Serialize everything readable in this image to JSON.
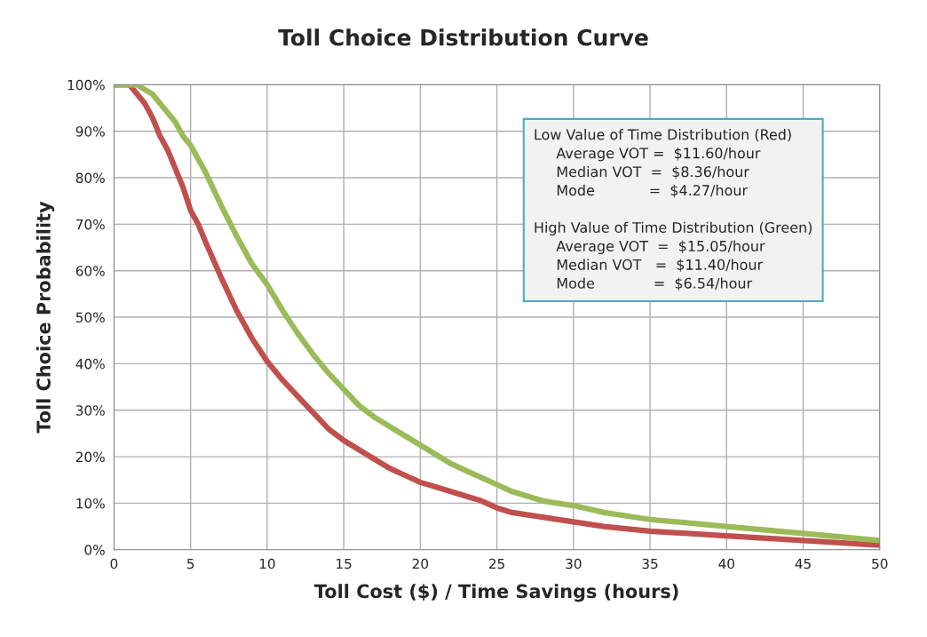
{
  "chart_data": {
    "type": "line",
    "title": "Toll Choice Distribution Curve",
    "xlabel": "Toll Cost ($) / Time Savings (hours)",
    "ylabel": "Toll Choice Probability",
    "xlim": [
      0,
      50
    ],
    "xticks": [
      0,
      5,
      10,
      15,
      20,
      25,
      30,
      35,
      40,
      45,
      50
    ],
    "ylim": [
      0,
      100
    ],
    "yticks": [
      {
        "value": 0,
        "label": "0%"
      },
      {
        "value": 10,
        "label": "10%"
      },
      {
        "value": 20,
        "label": "20%"
      },
      {
        "value": 30,
        "label": "30%"
      },
      {
        "value": 40,
        "label": "40%"
      },
      {
        "value": 50,
        "label": "50%"
      },
      {
        "value": 60,
        "label": "60%"
      },
      {
        "value": 70,
        "label": "70%"
      },
      {
        "value": 80,
        "label": "80%"
      },
      {
        "value": 90,
        "label": "90%"
      },
      {
        "value": 100,
        "label": "100%"
      }
    ],
    "grid": true,
    "marker": "none",
    "line_style": "solid",
    "series": [
      {
        "color": "#c0504d",
        "x": [
          0,
          1,
          1.5,
          2,
          2.5,
          3,
          3.5,
          4,
          4.5,
          5,
          5.5,
          6,
          7,
          8,
          9,
          10,
          11,
          12,
          13,
          14,
          15,
          16,
          17,
          18,
          19,
          20,
          21,
          22,
          23,
          24,
          25,
          26,
          28,
          30,
          32,
          35,
          40,
          45,
          50
        ],
        "values": [
          100,
          100,
          98,
          96,
          93,
          89,
          86,
          82,
          78,
          73,
          70,
          66,
          58.5,
          51.5,
          45.5,
          40.5,
          36.5,
          33,
          29.5,
          26,
          23.5,
          21.5,
          19.5,
          17.5,
          16,
          14.5,
          13.5,
          12.5,
          11.5,
          10.5,
          9,
          8,
          7,
          6,
          5,
          4,
          3,
          2,
          1
        ]
      },
      {
        "color": "#9bbb59",
        "x": [
          0,
          1.5,
          2,
          2.5,
          3,
          3.5,
          4,
          4.5,
          5,
          5.5,
          6,
          7,
          8,
          9,
          10,
          11,
          12,
          13,
          14,
          15,
          16,
          17,
          18,
          19,
          20,
          21,
          22,
          23,
          24,
          25,
          26,
          27,
          28,
          30,
          32,
          35,
          40,
          45,
          50
        ],
        "values": [
          100,
          100,
          99,
          98,
          96,
          94,
          92,
          89,
          87,
          84,
          81,
          74,
          67.5,
          61.5,
          57,
          51.5,
          46.5,
          42,
          38,
          34.5,
          31,
          28.5,
          26.5,
          24.5,
          22.5,
          20.5,
          18.5,
          17,
          15.5,
          14,
          12.5,
          11.5,
          10.5,
          9.5,
          8,
          6.5,
          5,
          3.5,
          2
        ]
      }
    ],
    "annotations": [
      "Low Value of Time Distribution (Red)",
      "Average VOT =  $11.60/hour",
      "Median VOT  =  $8.36/hour",
      "Mode            =  $4.27/hour",
      "High Value of Time Distribution (Green)",
      "Average VOT  =  $15.05/hour",
      "Median VOT   =  $11.40/hour",
      "Mode             =  $6.54/hour"
    ]
  }
}
